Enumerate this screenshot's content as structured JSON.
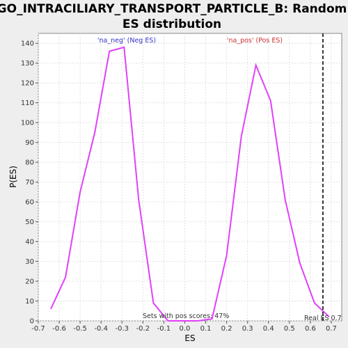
{
  "chart_data": {
    "type": "line",
    "title_line1": "GO_INTRACILIARY_TRANSPORT_PARTICLE_B: Random",
    "title_line2": "ES distribution",
    "xlabel": "ES",
    "ylabel": "P(ES)",
    "xlim": [
      -0.7,
      0.75
    ],
    "ylim": [
      0,
      145
    ],
    "xticks": [
      "-0.7",
      "-0.6",
      "-0.5",
      "-0.4",
      "-0.3",
      "-0.2",
      "-0.1",
      "0.0",
      "0.1",
      "0.2",
      "0.3",
      "0.4",
      "0.5",
      "0.6",
      "0.7"
    ],
    "yticks": [
      "0",
      "10",
      "20",
      "30",
      "40",
      "50",
      "60",
      "70",
      "80",
      "90",
      "100",
      "110",
      "120",
      "130",
      "140"
    ],
    "grid": true,
    "series": [
      {
        "name": "'na_neg' (Neg ES)",
        "color": "#e040fb",
        "label_color": "#3333cc",
        "x": [
          -0.64,
          -0.57,
          -0.5,
          -0.43,
          -0.36,
          -0.29,
          -0.22,
          -0.15,
          -0.08,
          -0.01,
          0.06
        ],
        "y": [
          6,
          22,
          65,
          95,
          136,
          138,
          61,
          9,
          0,
          0,
          0
        ]
      },
      {
        "name": "'na_pos' (Pos ES)",
        "color": "#e040fb",
        "label_color": "#cc3333",
        "x": [
          0.06,
          0.13,
          0.2,
          0.27,
          0.34,
          0.41,
          0.48,
          0.55,
          0.62,
          0.69
        ],
        "y": [
          0,
          1,
          33,
          93,
          129,
          111,
          61,
          29,
          9,
          2
        ]
      }
    ],
    "real_es": {
      "value": 0.66,
      "label": "Real ES 0.7"
    },
    "annotation": "Sets with pos scores: 47%"
  }
}
